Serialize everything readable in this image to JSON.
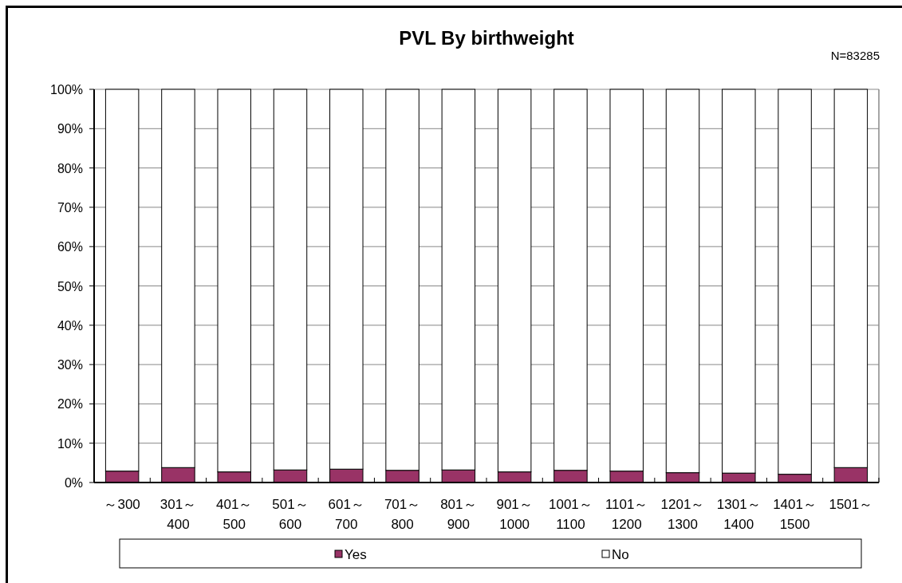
{
  "chart_data": {
    "type": "bar",
    "stacked": true,
    "title": "PVL By birthweight",
    "annotations": [
      "N=83285"
    ],
    "categories": [
      "～300",
      "301～\n400",
      "401～\n500",
      "501～\n600",
      "601～\n700",
      "701～\n800",
      "801～\n900",
      "901～\n1000",
      "1001～\n1100",
      "1101～\n1200",
      "1201～\n1300",
      "1301～\n1400",
      "1401～\n1500",
      "1501～"
    ],
    "series": [
      {
        "name": "Yes",
        "color": "#993366",
        "values": [
          2.9,
          3.8,
          2.7,
          3.2,
          3.4,
          3.1,
          3.2,
          2.7,
          3.1,
          2.9,
          2.5,
          2.4,
          2.1,
          3.8
        ]
      },
      {
        "name": "No",
        "color": "#ffffff",
        "values": [
          97.1,
          96.2,
          97.3,
          96.8,
          96.6,
          96.9,
          96.8,
          97.3,
          96.9,
          97.1,
          97.5,
          97.6,
          97.9,
          96.2
        ]
      }
    ],
    "ylim": [
      0,
      100
    ],
    "yticks": [
      {
        "value": 0,
        "label": "0%"
      },
      {
        "value": 10,
        "label": "10%"
      },
      {
        "value": 20,
        "label": "20%"
      },
      {
        "value": 30,
        "label": "30%"
      },
      {
        "value": 40,
        "label": "40%"
      },
      {
        "value": 50,
        "label": "50%"
      },
      {
        "value": 60,
        "label": "60%"
      },
      {
        "value": 70,
        "label": "70%"
      },
      {
        "value": 80,
        "label": "80%"
      },
      {
        "value": 90,
        "label": "90%"
      },
      {
        "value": 100,
        "label": "100%"
      }
    ],
    "grid": "y",
    "legend": "bottom"
  }
}
